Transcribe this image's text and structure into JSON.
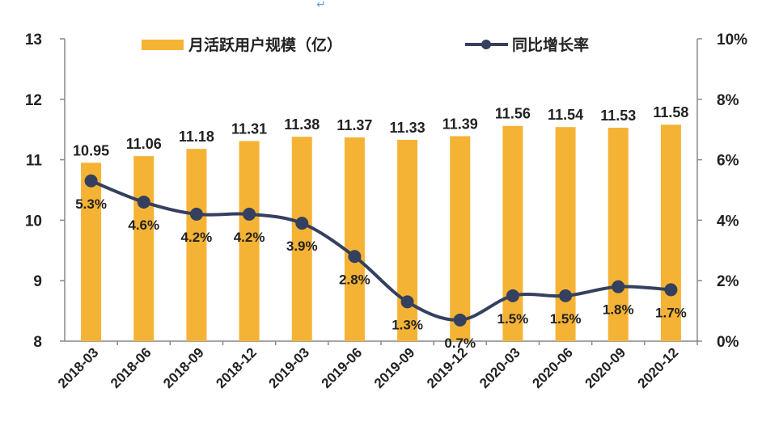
{
  "chart_data": {
    "type": "bar",
    "categories": [
      "2018-03",
      "2018-06",
      "2018-09",
      "2018-12",
      "2019-03",
      "2019-06",
      "2019-09",
      "2019-12",
      "2020-03",
      "2020-06",
      "2020-09",
      "2020-12"
    ],
    "series": [
      {
        "name": "月活跃用户规模（亿）",
        "type": "bar",
        "axis": "left",
        "values": [
          10.95,
          11.06,
          11.18,
          11.31,
          11.38,
          11.37,
          11.33,
          11.39,
          11.56,
          11.54,
          11.53,
          11.58
        ],
        "labels": [
          "10.95",
          "11.06",
          "11.18",
          "11.31",
          "11.38",
          "11.37",
          "11.33",
          "11.39",
          "11.56",
          "11.54",
          "11.53",
          "11.58"
        ],
        "color": "#F5B335"
      },
      {
        "name": "同比增长率",
        "type": "line",
        "axis": "right",
        "values": [
          5.3,
          4.6,
          4.2,
          4.2,
          3.9,
          2.8,
          1.3,
          0.7,
          1.5,
          1.5,
          1.8,
          1.7
        ],
        "labels": [
          "5.3%",
          "4.6%",
          "4.2%",
          "4.2%",
          "3.9%",
          "2.8%",
          "1.3%",
          "0.7%",
          "1.5%",
          "1.5%",
          "1.8%",
          "1.7%"
        ],
        "color": "#35405F"
      }
    ],
    "y_left": {
      "range": [
        8,
        13
      ],
      "ticks": [
        "8",
        "9",
        "10",
        "11",
        "12",
        "13"
      ]
    },
    "y_right": {
      "range": [
        0,
        10
      ],
      "ticks": [
        "0%",
        "2%",
        "4%",
        "6%",
        "8%",
        "10%"
      ]
    },
    "grid": false,
    "legend_position": "top"
  },
  "top_mark": "↵"
}
